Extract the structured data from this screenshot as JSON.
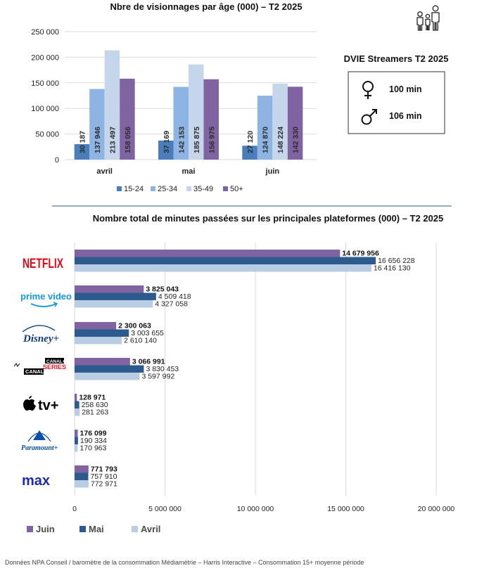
{
  "top_chart_title": "Nbre de visionnages par âge (000)  – T2 2025",
  "dvie": {
    "title": "DVIE Streamers T2 2025",
    "female_value": "100 min",
    "male_value": "106 min",
    "female_icon": "female-symbol-icon",
    "male_icon": "male-symbol-icon"
  },
  "family_icon": "family-icon",
  "bottom_chart_title": "Nombre total de minutes passées sur les principales plateformes (000) – T2 2025",
  "footer": "Données NPA Conseil /  baromètre de la consommation Médiamétrie – Harris Interactive – Consommation 15+ moyenne période",
  "platforms": [
    {
      "name": "netflix",
      "logo_text": "NETFLIX",
      "icon": "netflix-logo-icon"
    },
    {
      "name": "prime-video",
      "logo_text": "prime video",
      "icon": "prime-video-logo-icon"
    },
    {
      "name": "disney-plus",
      "logo_text": "Disney+",
      "icon": "disney-plus-logo-icon"
    },
    {
      "name": "canal-series",
      "logo_text_top": "CANAL+",
      "logo_text_series": "SERIES",
      "logo_text_canal": "CANAL",
      "icon": "canal-series-logo-icon"
    },
    {
      "name": "apple-tv",
      "logo_text": "tv+",
      "icon": "apple-tv-logo-icon"
    },
    {
      "name": "paramount",
      "logo_text": "Paramount+",
      "icon": "paramount-logo-icon"
    },
    {
      "name": "max",
      "logo_text": "max",
      "icon": "max-logo-icon"
    }
  ],
  "chart_data": [
    {
      "type": "bar",
      "title": "Nbre de visionnages par âge (000)  – T2 2025",
      "categories": [
        "avril",
        "mai",
        "juin"
      ],
      "series": [
        {
          "name": "15-24",
          "color": "#4a7ebb",
          "values": [
            30187,
            37169,
            27120
          ],
          "labels": [
            "30 187",
            "37 169",
            "27 120"
          ]
        },
        {
          "name": "25-34",
          "color": "#8eb4e3",
          "values": [
            137946,
            142153,
            124870
          ],
          "labels": [
            "137 946",
            "142 153",
            "124 870"
          ]
        },
        {
          "name": "35-49",
          "color": "#c5d5ea",
          "values": [
            213497,
            185875,
            148224
          ],
          "labels": [
            "213 497",
            "185 875",
            "148 224"
          ]
        },
        {
          "name": "50+",
          "color": "#8064a2",
          "values": [
            158056,
            156975,
            142330
          ],
          "labels": [
            "158 056",
            "156 975",
            "142 330"
          ]
        }
      ],
      "ylim": [
        0,
        250000
      ],
      "yticks": [
        0,
        50000,
        100000,
        150000,
        200000,
        250000
      ],
      "ytick_labels": [
        "0",
        "50 000",
        "100 000",
        "150 000",
        "200 000",
        "250 000"
      ],
      "grid": true,
      "legend": "bottom"
    },
    {
      "type": "bar",
      "orientation": "horizontal",
      "title": "Nombre total de minutes passées sur les principales plateformes (000) – T2 2025",
      "categories": [
        "Netflix",
        "Prime Video",
        "Disney+",
        "Canal+ Séries",
        "Apple TV+",
        "Paramount+",
        "Max"
      ],
      "series": [
        {
          "name": "Juin",
          "color": "#8064a2",
          "values": [
            14679956,
            3825043,
            2300063,
            3066991,
            128971,
            176099,
            771793
          ],
          "labels": [
            "14 679 956",
            "3 825 043",
            "2 300 063",
            "3 066 991",
            "128 971",
            "176 099",
            "771 793"
          ]
        },
        {
          "name": "Mai",
          "color": "#2e5b8e",
          "values": [
            16656228,
            4509418,
            3003655,
            3830453,
            258630,
            190334,
            757910
          ],
          "labels": [
            "16 656 228",
            "4 509 418",
            "3 003 655",
            "3 830 453",
            "258 630",
            "190 334",
            "757 910"
          ]
        },
        {
          "name": "Avril",
          "color": "#b8cce4",
          "values": [
            16416130,
            4327058,
            2610140,
            3597992,
            281263,
            170963,
            772971
          ],
          "labels": [
            "16 416 130",
            "4 327 058",
            "2 610 140",
            "3 597 992",
            "281 263",
            "170 963",
            "772 971"
          ]
        }
      ],
      "xlim": [
        0,
        20000000
      ],
      "xticks": [
        0,
        5000000,
        10000000,
        15000000,
        20000000
      ],
      "xtick_labels": [
        "0",
        "5 000 000",
        "10 000 000",
        "15 000 000",
        "20 000 000"
      ],
      "grid": true,
      "legend": "bottom-left"
    }
  ]
}
